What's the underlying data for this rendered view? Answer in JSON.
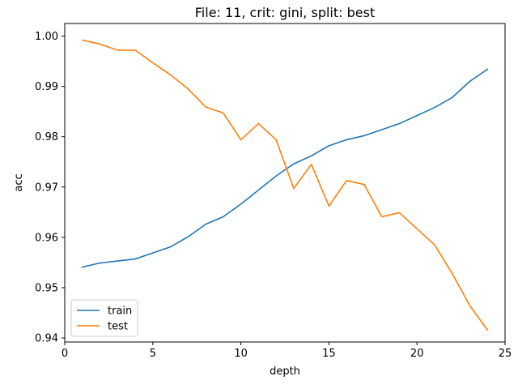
{
  "chart_data": {
    "type": "line",
    "title": "File: 11, crit: gini, split: best",
    "xlabel": "depth",
    "ylabel": "acc",
    "xlim": [
      0,
      25
    ],
    "ylim": [
      0.9392,
      1.0025
    ],
    "x_ticks": [
      0,
      5,
      10,
      15,
      20,
      25
    ],
    "y_ticks": [
      0.94,
      0.95,
      0.96,
      0.97,
      0.98,
      0.99,
      1.0
    ],
    "x_tick_labels": [
      "0",
      "5",
      "10",
      "15",
      "20",
      "25"
    ],
    "y_tick_labels": [
      "0.94",
      "0.95",
      "0.96",
      "0.97",
      "0.98",
      "0.99",
      "1.00"
    ],
    "grid": false,
    "legend_position": "lower-left",
    "x": [
      1,
      2,
      3,
      4,
      5,
      6,
      7,
      8,
      9,
      10,
      11,
      12,
      13,
      14,
      15,
      16,
      17,
      18,
      19,
      20,
      21,
      22,
      23,
      24
    ],
    "series": [
      {
        "name": "train",
        "color": "#1f77b4",
        "values": [
          0.9541,
          0.9549,
          0.9553,
          0.9557,
          0.9569,
          0.9581,
          0.9601,
          0.9626,
          0.9641,
          0.9666,
          0.9694,
          0.9722,
          0.9746,
          0.9762,
          0.9782,
          0.9794,
          0.9802,
          0.9814,
          0.9826,
          0.9842,
          0.9858,
          0.9878,
          0.991,
          0.9934
        ]
      },
      {
        "name": "test",
        "color": "#ff7f0e",
        "values": [
          0.9992,
          0.9984,
          0.9972,
          0.9972,
          0.9947,
          0.9923,
          0.9895,
          0.9859,
          0.9847,
          0.9794,
          0.9826,
          0.9794,
          0.9697,
          0.9745,
          0.9662,
          0.9713,
          0.9705,
          0.9641,
          0.9649,
          0.9617,
          0.9585,
          0.9528,
          0.9464,
          0.9416
        ]
      }
    ]
  }
}
